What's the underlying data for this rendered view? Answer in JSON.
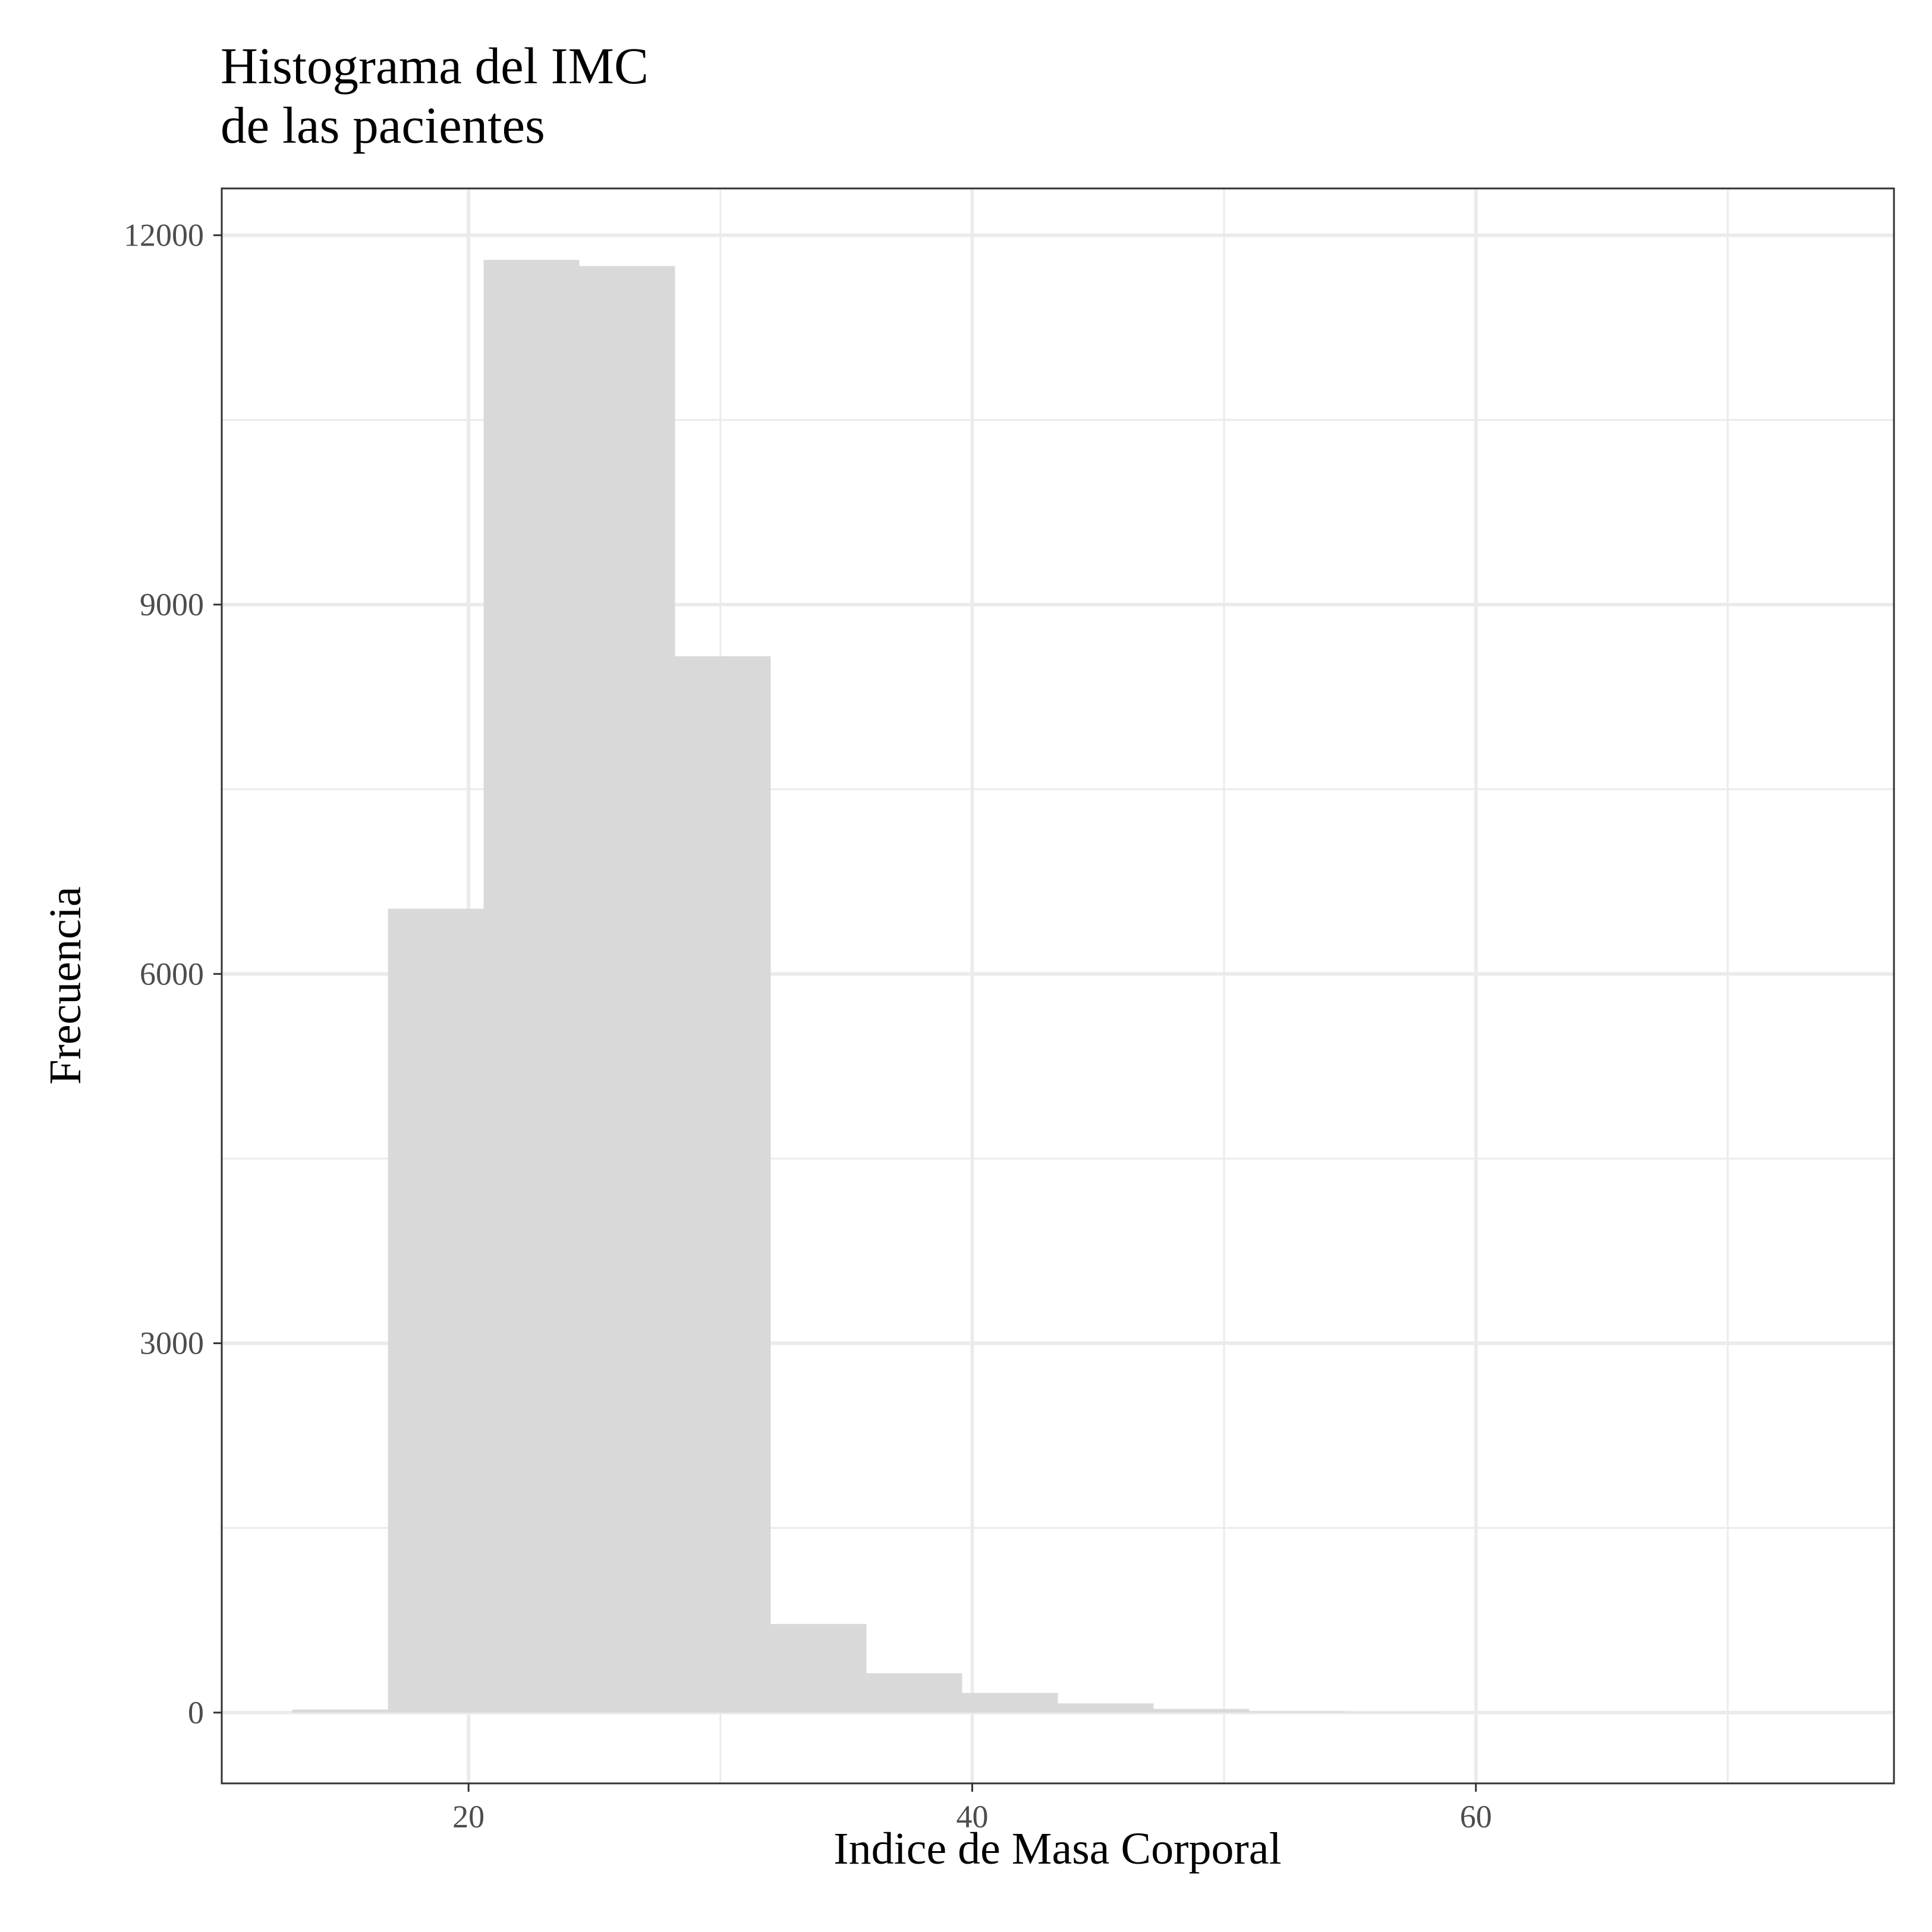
{
  "chart_data": {
    "type": "bar",
    "title_lines": [
      "Histograma del IMC",
      "de las pacientes"
    ],
    "xlabel": "Indice de Masa Corporal",
    "ylabel": "Frecuencia",
    "xlim": [
      10.2,
      76.6
    ],
    "ylim": [
      -575,
      12380
    ],
    "x_ticks": [
      20,
      40,
      60
    ],
    "x_tick_labels": [
      "20",
      "40",
      "60"
    ],
    "x_minor_ticks": [
      30,
      50,
      70
    ],
    "y_ticks": [
      0,
      3000,
      6000,
      9000,
      12000
    ],
    "y_tick_labels": [
      "0",
      "3000",
      "6000",
      "9000",
      "12000"
    ],
    "y_minor_ticks": [
      1500,
      4500,
      7500,
      10500
    ],
    "grid": true,
    "bar_color": "#d9d9d9",
    "bins": [
      {
        "x0": 13.0,
        "x1": 16.8,
        "count": 25
      },
      {
        "x0": 16.8,
        "x1": 20.6,
        "count": 6530
      },
      {
        "x0": 20.6,
        "x1": 24.4,
        "count": 11800
      },
      {
        "x0": 24.4,
        "x1": 28.2,
        "count": 11750
      },
      {
        "x0": 28.2,
        "x1": 32.0,
        "count": 8580
      },
      {
        "x0": 32.0,
        "x1": 35.8,
        "count": 720
      },
      {
        "x0": 35.8,
        "x1": 39.6,
        "count": 320
      },
      {
        "x0": 39.6,
        "x1": 43.4,
        "count": 160
      },
      {
        "x0": 43.4,
        "x1": 47.2,
        "count": 75
      },
      {
        "x0": 47.2,
        "x1": 51.0,
        "count": 30
      },
      {
        "x0": 51.0,
        "x1": 54.8,
        "count": 10
      },
      {
        "x0": 54.8,
        "x1": 58.6,
        "count": 3
      }
    ]
  }
}
